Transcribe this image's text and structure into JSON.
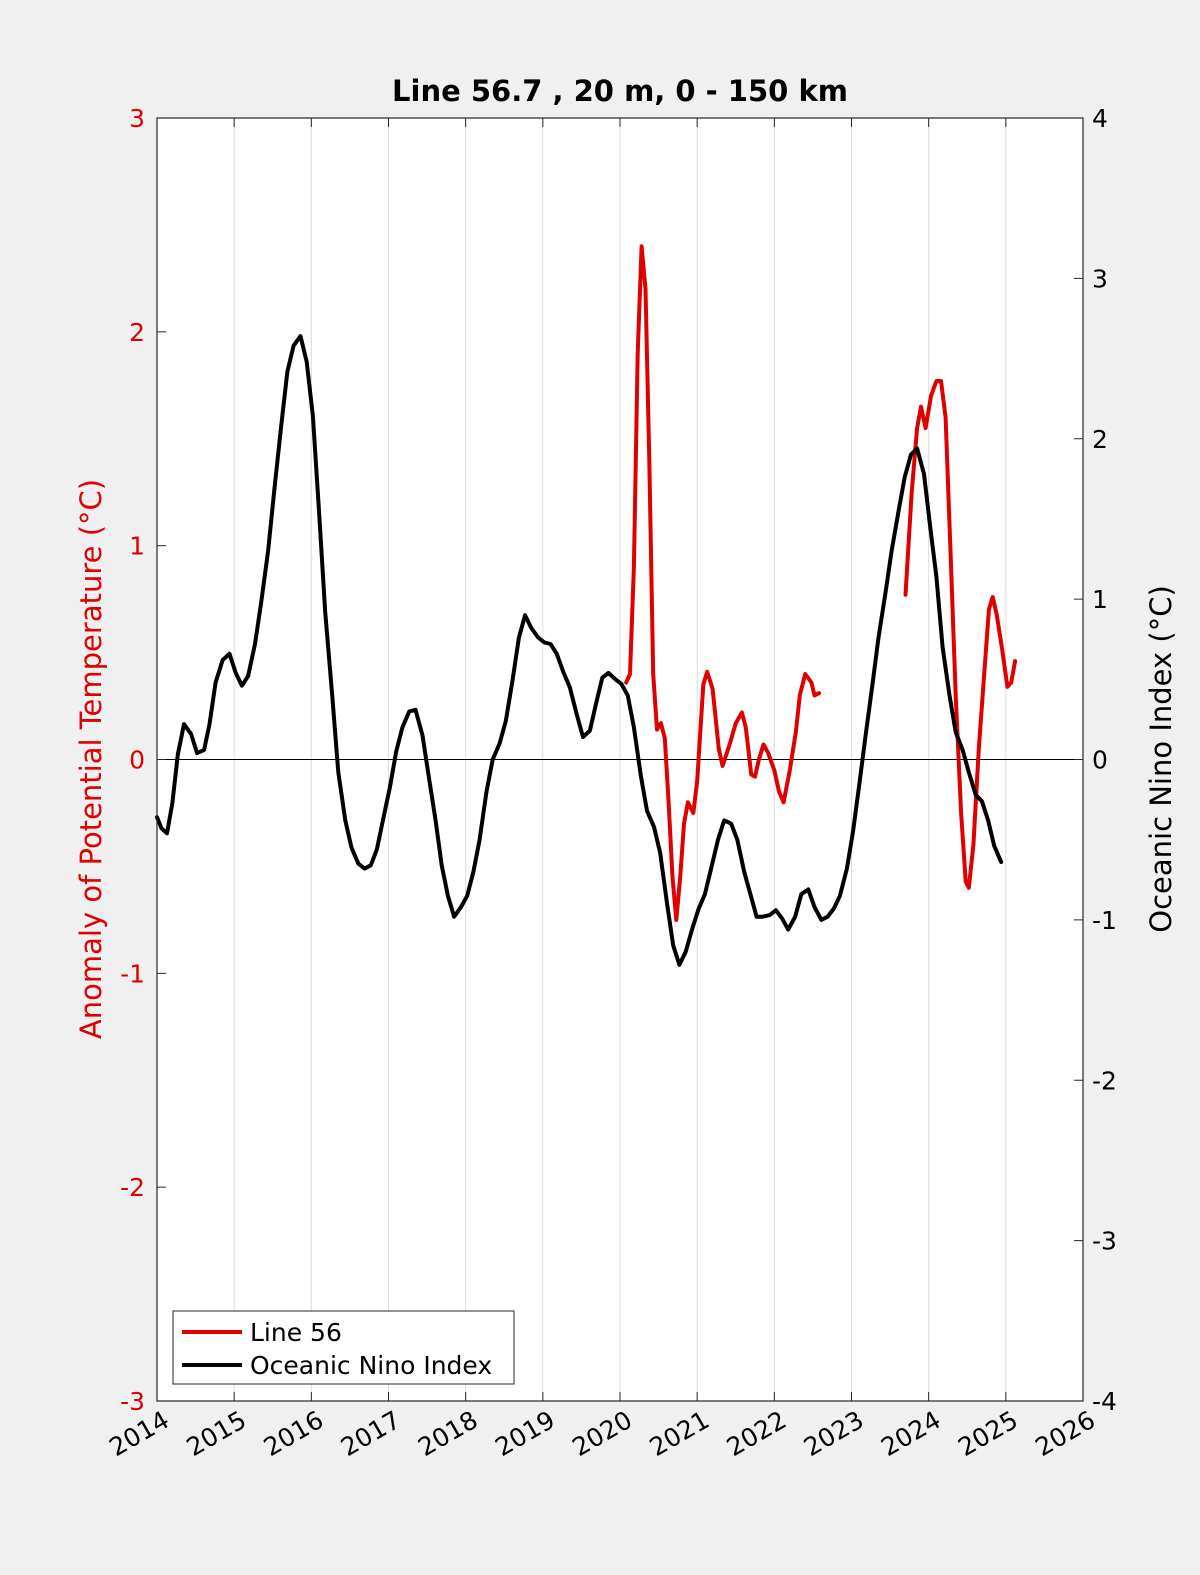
{
  "chart_data": {
    "type": "line",
    "title": "Line 56.7 , 20 m, 0 - 150 km",
    "ylabel_left": "Anomaly of Potential Temperature (°C)",
    "ylabel_right": "Oceanic Nino Index (°C)",
    "xlim": [
      2014,
      2026
    ],
    "ylim_left": [
      -3,
      3
    ],
    "ylim_right": [
      -4,
      4
    ],
    "x_ticks": [
      "2014",
      "2015",
      "2016",
      "2017",
      "2018",
      "2019",
      "2020",
      "2021",
      "2022",
      "2023",
      "2024",
      "2025",
      "2026"
    ],
    "y_left_ticks": [
      "-3",
      "-2",
      "-1",
      "0",
      "1",
      "2",
      "3"
    ],
    "y_right_ticks": [
      "-4",
      "-3",
      "-2",
      "-1",
      "0",
      "1",
      "2",
      "3",
      "4"
    ],
    "grid": "vertical",
    "legend_position": "bottom-left",
    "colors": {
      "left_axis": "#e00000",
      "line56": "#e00000",
      "oni": "#000000"
    },
    "series": [
      {
        "name": "Line 56",
        "axis": "left",
        "color": "#e00000",
        "segments": [
          [
            [
              2020.08,
              0.36
            ],
            [
              2020.13,
              0.4
            ],
            [
              2020.18,
              0.9
            ],
            [
              2020.23,
              1.9
            ],
            [
              2020.28,
              2.4
            ],
            [
              2020.33,
              2.2
            ],
            [
              2020.38,
              1.4
            ],
            [
              2020.43,
              0.4
            ],
            [
              2020.48,
              0.14
            ],
            [
              2020.53,
              0.17
            ],
            [
              2020.58,
              0.1
            ],
            [
              2020.63,
              -0.2
            ],
            [
              2020.68,
              -0.55
            ],
            [
              2020.73,
              -0.75
            ],
            [
              2020.78,
              -0.55
            ],
            [
              2020.83,
              -0.3
            ],
            [
              2020.88,
              -0.2
            ],
            [
              2020.95,
              -0.25
            ],
            [
              2021.0,
              -0.1
            ],
            [
              2021.08,
              0.35
            ],
            [
              2021.13,
              0.41
            ],
            [
              2021.2,
              0.33
            ],
            [
              2021.28,
              0.05
            ],
            [
              2021.33,
              -0.03
            ],
            [
              2021.42,
              0.07
            ],
            [
              2021.5,
              0.17
            ],
            [
              2021.58,
              0.22
            ],
            [
              2021.63,
              0.15
            ],
            [
              2021.7,
              -0.07
            ],
            [
              2021.75,
              -0.08
            ],
            [
              2021.8,
              0.0
            ],
            [
              2021.86,
              0.07
            ],
            [
              2021.92,
              0.03
            ],
            [
              2022.0,
              -0.05
            ],
            [
              2022.06,
              -0.15
            ],
            [
              2022.12,
              -0.2
            ],
            [
              2022.2,
              -0.05
            ],
            [
              2022.28,
              0.13
            ],
            [
              2022.33,
              0.3
            ],
            [
              2022.4,
              0.4
            ],
            [
              2022.48,
              0.36
            ],
            [
              2022.52,
              0.3
            ],
            [
              2022.58,
              0.31
            ]
          ],
          [
            [
              2023.7,
              0.77
            ],
            [
              2023.78,
              1.25
            ],
            [
              2023.85,
              1.55
            ],
            [
              2023.9,
              1.65
            ],
            [
              2023.96,
              1.55
            ],
            [
              2024.03,
              1.7
            ],
            [
              2024.1,
              1.77
            ],
            [
              2024.16,
              1.77
            ],
            [
              2024.22,
              1.6
            ],
            [
              2024.28,
              1.0
            ],
            [
              2024.35,
              0.3
            ],
            [
              2024.42,
              -0.25
            ],
            [
              2024.48,
              -0.57
            ],
            [
              2024.52,
              -0.6
            ],
            [
              2024.58,
              -0.4
            ],
            [
              2024.65,
              0.05
            ],
            [
              2024.72,
              0.4
            ],
            [
              2024.78,
              0.7
            ],
            [
              2024.83,
              0.76
            ],
            [
              2024.88,
              0.68
            ],
            [
              2024.95,
              0.52
            ],
            [
              2025.02,
              0.34
            ],
            [
              2025.07,
              0.36
            ],
            [
              2025.12,
              0.46
            ]
          ]
        ]
      },
      {
        "name": "Oceanic Nino Index",
        "axis": "right",
        "color": "#000000",
        "segments": [
          [
            [
              2014.0,
              -0.36
            ],
            [
              2014.06,
              -0.43
            ],
            [
              2014.13,
              -0.46
            ],
            [
              2014.2,
              -0.27
            ],
            [
              2014.27,
              0.03
            ],
            [
              2014.35,
              0.22
            ],
            [
              2014.44,
              0.16
            ],
            [
              2014.52,
              0.04
            ],
            [
              2014.61,
              0.06
            ],
            [
              2014.68,
              0.22
            ],
            [
              2014.76,
              0.48
            ],
            [
              2014.85,
              0.62
            ],
            [
              2014.94,
              0.66
            ],
            [
              2015.02,
              0.54
            ],
            [
              2015.1,
              0.46
            ],
            [
              2015.18,
              0.52
            ],
            [
              2015.27,
              0.72
            ],
            [
              2015.35,
              0.98
            ],
            [
              2015.44,
              1.3
            ],
            [
              2015.52,
              1.68
            ],
            [
              2015.61,
              2.08
            ],
            [
              2015.69,
              2.42
            ],
            [
              2015.77,
              2.58
            ],
            [
              2015.86,
              2.64
            ],
            [
              2015.94,
              2.48
            ],
            [
              2016.02,
              2.14
            ],
            [
              2016.1,
              1.55
            ],
            [
              2016.18,
              0.92
            ],
            [
              2016.27,
              0.4
            ],
            [
              2016.35,
              -0.08
            ],
            [
              2016.44,
              -0.38
            ],
            [
              2016.52,
              -0.55
            ],
            [
              2016.61,
              -0.65
            ],
            [
              2016.69,
              -0.68
            ],
            [
              2016.77,
              -0.66
            ],
            [
              2016.85,
              -0.56
            ],
            [
              2016.94,
              -0.35
            ],
            [
              2017.02,
              -0.17
            ],
            [
              2017.1,
              0.05
            ],
            [
              2017.18,
              0.2
            ],
            [
              2017.27,
              0.3
            ],
            [
              2017.35,
              0.31
            ],
            [
              2017.44,
              0.15
            ],
            [
              2017.52,
              -0.1
            ],
            [
              2017.61,
              -0.38
            ],
            [
              2017.69,
              -0.66
            ],
            [
              2017.77,
              -0.85
            ],
            [
              2017.85,
              -0.98
            ],
            [
              2017.94,
              -0.92
            ],
            [
              2018.02,
              -0.85
            ],
            [
              2018.1,
              -0.7
            ],
            [
              2018.18,
              -0.5
            ],
            [
              2018.27,
              -0.2
            ],
            [
              2018.35,
              0.0
            ],
            [
              2018.44,
              0.1
            ],
            [
              2018.52,
              0.24
            ],
            [
              2018.61,
              0.5
            ],
            [
              2018.69,
              0.76
            ],
            [
              2018.77,
              0.9
            ],
            [
              2018.85,
              0.82
            ],
            [
              2018.94,
              0.76
            ],
            [
              2019.02,
              0.73
            ],
            [
              2019.1,
              0.72
            ],
            [
              2019.18,
              0.66
            ],
            [
              2019.27,
              0.54
            ],
            [
              2019.35,
              0.45
            ],
            [
              2019.44,
              0.28
            ],
            [
              2019.52,
              0.14
            ],
            [
              2019.61,
              0.18
            ],
            [
              2019.69,
              0.35
            ],
            [
              2019.77,
              0.51
            ],
            [
              2019.85,
              0.54
            ],
            [
              2019.94,
              0.5
            ],
            [
              2020.02,
              0.47
            ],
            [
              2020.1,
              0.4
            ],
            [
              2020.18,
              0.2
            ],
            [
              2020.27,
              -0.1
            ],
            [
              2020.35,
              -0.32
            ],
            [
              2020.44,
              -0.42
            ],
            [
              2020.52,
              -0.58
            ],
            [
              2020.61,
              -0.9
            ],
            [
              2020.69,
              -1.16
            ],
            [
              2020.77,
              -1.28
            ],
            [
              2020.85,
              -1.2
            ],
            [
              2020.94,
              -1.05
            ],
            [
              2021.02,
              -0.93
            ],
            [
              2021.1,
              -0.84
            ],
            [
              2021.18,
              -0.68
            ],
            [
              2021.27,
              -0.5
            ],
            [
              2021.35,
              -0.38
            ],
            [
              2021.44,
              -0.4
            ],
            [
              2021.52,
              -0.5
            ],
            [
              2021.61,
              -0.7
            ],
            [
              2021.69,
              -0.84
            ],
            [
              2021.77,
              -0.98
            ],
            [
              2021.85,
              -0.98
            ],
            [
              2021.94,
              -0.97
            ],
            [
              2022.02,
              -0.94
            ],
            [
              2022.1,
              -0.99
            ],
            [
              2022.18,
              -1.06
            ],
            [
              2022.27,
              -0.98
            ],
            [
              2022.35,
              -0.84
            ],
            [
              2022.44,
              -0.81
            ],
            [
              2022.52,
              -0.92
            ],
            [
              2022.61,
              -1.0
            ],
            [
              2022.69,
              -0.98
            ],
            [
              2022.77,
              -0.93
            ],
            [
              2022.85,
              -0.85
            ],
            [
              2022.94,
              -0.68
            ],
            [
              2023.02,
              -0.45
            ],
            [
              2023.1,
              -0.16
            ],
            [
              2023.18,
              0.14
            ],
            [
              2023.27,
              0.46
            ],
            [
              2023.35,
              0.76
            ],
            [
              2023.44,
              1.04
            ],
            [
              2023.52,
              1.3
            ],
            [
              2023.61,
              1.55
            ],
            [
              2023.69,
              1.76
            ],
            [
              2023.77,
              1.9
            ],
            [
              2023.85,
              1.94
            ],
            [
              2023.94,
              1.78
            ],
            [
              2024.02,
              1.45
            ],
            [
              2024.1,
              1.14
            ],
            [
              2024.18,
              0.7
            ],
            [
              2024.27,
              0.4
            ],
            [
              2024.35,
              0.17
            ],
            [
              2024.44,
              0.06
            ],
            [
              2024.52,
              -0.08
            ],
            [
              2024.61,
              -0.22
            ],
            [
              2024.69,
              -0.26
            ],
            [
              2024.77,
              -0.38
            ],
            [
              2024.85,
              -0.54
            ],
            [
              2024.94,
              -0.64
            ]
          ]
        ]
      }
    ]
  }
}
